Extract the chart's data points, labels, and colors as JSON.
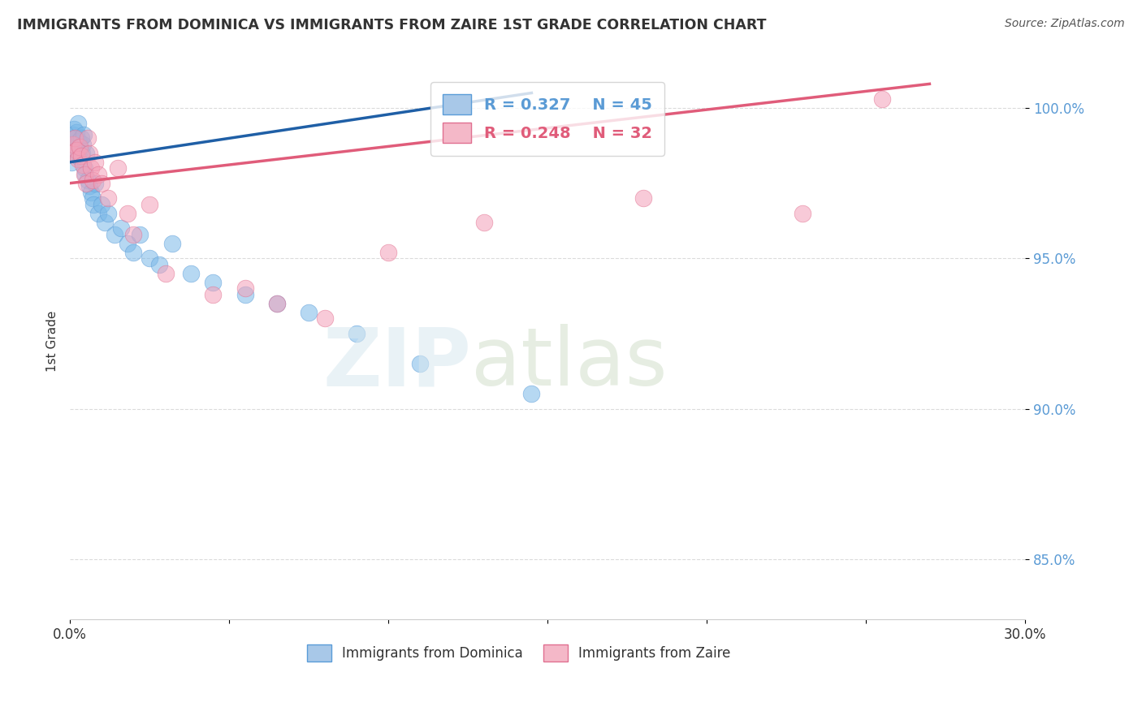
{
  "title": "IMMIGRANTS FROM DOMINICA VS IMMIGRANTS FROM ZAIRE 1ST GRADE CORRELATION CHART",
  "source": "Source: ZipAtlas.com",
  "ylabel": "1st Grade",
  "xlim": [
    0.0,
    30.0
  ],
  "ylim": [
    83.0,
    101.5
  ],
  "xtick_vals": [
    0.0,
    5.0,
    10.0,
    15.0,
    20.0,
    25.0,
    30.0
  ],
  "xtick_labels": [
    "0.0%",
    "",
    "",
    "",
    "",
    "",
    "30.0%"
  ],
  "ytick_vals": [
    85.0,
    90.0,
    95.0,
    100.0
  ],
  "ytick_labels": [
    "85.0%",
    "90.0%",
    "95.0%",
    "100.0%"
  ],
  "blue_r": 0.327,
  "blue_n": 45,
  "pink_r": 0.248,
  "pink_n": 32,
  "blue_dot_color": "#7ab8e8",
  "blue_dot_edge": "#5a9cd8",
  "pink_dot_color": "#f4a0b8",
  "pink_dot_edge": "#e07090",
  "blue_line_color": "#1f5fa6",
  "pink_line_color": "#e05c7a",
  "legend_blue_fill": "#a8c8e8",
  "legend_pink_fill": "#f4b8c8",
  "grid_color": "#cccccc",
  "ytick_color": "#5b9bd5",
  "title_color": "#333333",
  "blue_x": [
    0.05,
    0.08,
    0.1,
    0.12,
    0.15,
    0.18,
    0.2,
    0.22,
    0.25,
    0.28,
    0.3,
    0.32,
    0.35,
    0.38,
    0.4,
    0.42,
    0.45,
    0.48,
    0.5,
    0.55,
    0.6,
    0.65,
    0.7,
    0.75,
    0.8,
    0.9,
    1.0,
    1.1,
    1.2,
    1.4,
    1.6,
    1.8,
    2.0,
    2.2,
    2.5,
    2.8,
    3.2,
    3.8,
    4.5,
    5.5,
    6.5,
    7.5,
    9.0,
    11.0,
    14.5
  ],
  "blue_y": [
    98.2,
    98.8,
    99.1,
    99.3,
    99.0,
    98.6,
    99.2,
    98.4,
    99.5,
    98.9,
    98.7,
    98.3,
    99.0,
    98.5,
    98.8,
    99.1,
    98.0,
    97.8,
    98.5,
    97.6,
    97.4,
    97.2,
    97.0,
    96.8,
    97.5,
    96.5,
    96.8,
    96.2,
    96.5,
    95.8,
    96.0,
    95.5,
    95.2,
    95.8,
    95.0,
    94.8,
    95.5,
    94.5,
    94.2,
    93.8,
    93.5,
    93.2,
    92.5,
    91.5,
    90.5
  ],
  "pink_x": [
    0.05,
    0.1,
    0.15,
    0.2,
    0.25,
    0.3,
    0.35,
    0.4,
    0.45,
    0.5,
    0.55,
    0.6,
    0.65,
    0.7,
    0.8,
    0.9,
    1.0,
    1.2,
    1.5,
    1.8,
    2.0,
    2.5,
    3.0,
    4.5,
    5.5,
    6.5,
    8.0,
    10.0,
    13.0,
    18.0,
    23.0,
    25.5
  ],
  "pink_y": [
    98.5,
    98.8,
    99.0,
    98.6,
    98.3,
    98.7,
    98.4,
    98.1,
    97.8,
    97.5,
    99.0,
    98.5,
    98.0,
    97.6,
    98.2,
    97.8,
    97.5,
    97.0,
    98.0,
    96.5,
    95.8,
    96.8,
    94.5,
    93.8,
    94.0,
    93.5,
    93.0,
    95.2,
    96.2,
    97.0,
    96.5,
    100.3
  ]
}
